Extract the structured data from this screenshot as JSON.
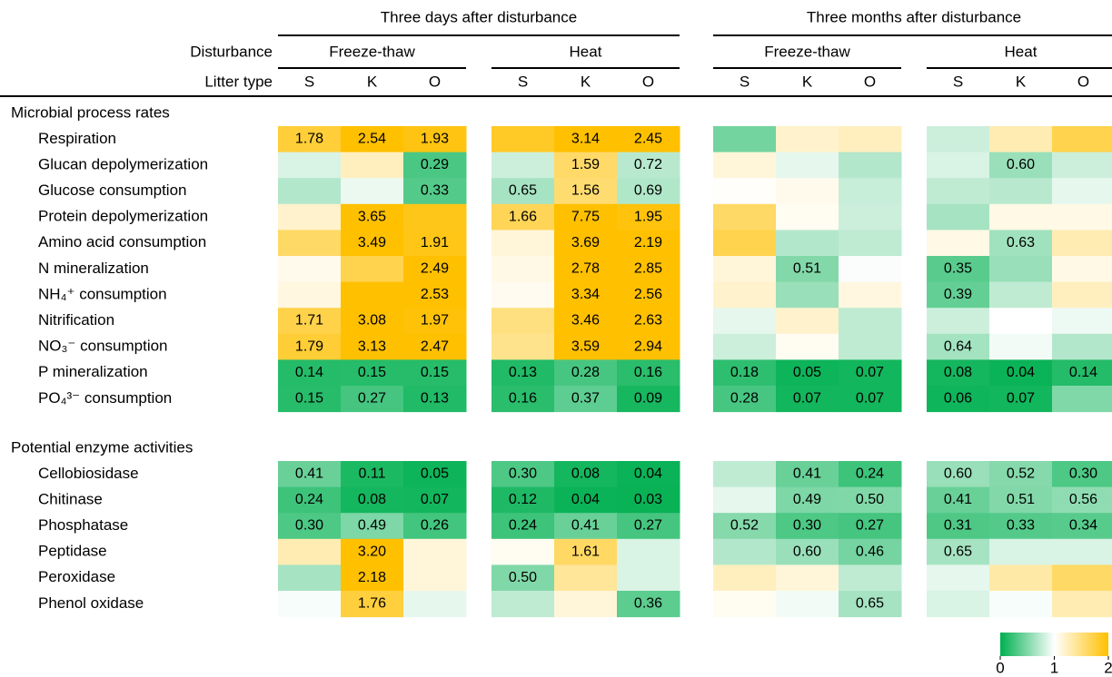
{
  "chart_data": {
    "type": "heatmap",
    "periods": [
      "Three days after disturbance",
      "Three months after disturbance"
    ],
    "disturbance_label": "Disturbance",
    "disturbances": [
      "Freeze-thaw",
      "Heat",
      "Freeze-thaw",
      "Heat"
    ],
    "litter_label": "Litter type",
    "litter_types": [
      "S",
      "K",
      "O",
      "S",
      "K",
      "O",
      "S",
      "K",
      "O",
      "S",
      "K",
      "O"
    ],
    "colorscale": [
      [
        0,
        "#00b050"
      ],
      [
        1,
        "#ffffff"
      ],
      [
        2,
        "#ffc000"
      ]
    ],
    "clim": [
      0,
      2
    ],
    "colorbar_ticks": [
      0,
      1,
      2
    ],
    "sections": [
      {
        "name": "Microbial process rates",
        "rows": [
          {
            "name": "Respiration",
            "values": [
              1.78,
              2.54,
              1.93,
              1.85,
              3.14,
              2.45,
              0.45,
              1.2,
              1.25,
              0.8,
              1.3,
              1.7
            ],
            "value_labels": [
              "1.78",
              "2.54",
              "1.93",
              null,
              "3.14",
              "2.45",
              null,
              null,
              null,
              null,
              null,
              null
            ]
          },
          {
            "name": "Glucan depolymerization",
            "values": [
              0.85,
              1.25,
              0.29,
              0.8,
              1.59,
              0.72,
              1.15,
              0.9,
              0.7,
              0.85,
              0.6,
              0.8
            ],
            "value_labels": [
              null,
              null,
              "0.29",
              null,
              "1.59",
              "0.72",
              null,
              null,
              null,
              null,
              "0.60",
              null
            ]
          },
          {
            "name": "Glucose consumption",
            "values": [
              0.7,
              0.92,
              0.33,
              0.65,
              1.56,
              0.69,
              1.02,
              1.08,
              0.78,
              0.75,
              0.72,
              0.9
            ],
            "value_labels": [
              null,
              null,
              "0.33",
              "0.65",
              "1.56",
              "0.69",
              null,
              null,
              null,
              null,
              null,
              null
            ]
          },
          {
            "name": "Protein depolymerization",
            "values": [
              1.2,
              3.65,
              1.9,
              1.66,
              7.75,
              1.95,
              1.6,
              1.05,
              0.8,
              0.65,
              1.1,
              1.1
            ],
            "value_labels": [
              null,
              "3.65",
              null,
              "1.66",
              "7.75",
              "1.95",
              null,
              null,
              null,
              null,
              null,
              null
            ]
          },
          {
            "name": "Amino acid consumption",
            "values": [
              1.6,
              3.49,
              1.91,
              1.15,
              3.69,
              2.19,
              1.7,
              0.7,
              0.75,
              1.1,
              0.63,
              1.3
            ],
            "value_labels": [
              null,
              "3.49",
              "1.91",
              null,
              "3.69",
              "2.19",
              null,
              null,
              null,
              null,
              "0.63",
              null
            ]
          },
          {
            "name": "N mineralization",
            "values": [
              1.08,
              1.7,
              2.49,
              1.1,
              2.78,
              2.85,
              1.15,
              0.51,
              0.98,
              0.35,
              0.6,
              1.1
            ],
            "value_labels": [
              null,
              null,
              "2.49",
              null,
              "2.78",
              "2.85",
              null,
              "0.51",
              null,
              "0.35",
              null,
              null
            ]
          },
          {
            "name": "NH₄⁺ consumption",
            "values": [
              1.12,
              2.0,
              2.53,
              1.06,
              3.34,
              2.56,
              1.2,
              0.6,
              1.12,
              0.39,
              0.75,
              1.25
            ],
            "value_labels": [
              null,
              null,
              "2.53",
              null,
              "3.34",
              "2.56",
              null,
              null,
              null,
              "0.39",
              null,
              null
            ]
          },
          {
            "name": "Nitrification",
            "values": [
              1.71,
              3.08,
              1.97,
              1.5,
              3.46,
              2.63,
              0.9,
              1.2,
              0.75,
              0.8,
              1.0,
              0.93
            ],
            "value_labels": [
              "1.71",
              "3.08",
              "1.97",
              null,
              "3.46",
              "2.63",
              null,
              null,
              null,
              null,
              null,
              null
            ]
          },
          {
            "name": "NO₃⁻ consumption",
            "values": [
              1.79,
              3.13,
              2.47,
              1.45,
              3.59,
              2.94,
              0.8,
              1.05,
              0.75,
              0.64,
              0.95,
              0.7
            ],
            "value_labels": [
              "1.79",
              "3.13",
              "2.47",
              null,
              "3.59",
              "2.94",
              null,
              null,
              null,
              "0.64",
              null,
              null
            ]
          },
          {
            "name": "P mineralization",
            "values": [
              0.14,
              0.15,
              0.15,
              0.13,
              0.28,
              0.16,
              0.18,
              0.05,
              0.07,
              0.08,
              0.04,
              0.14
            ],
            "value_labels": [
              "0.14",
              "0.15",
              "0.15",
              "0.13",
              "0.28",
              "0.16",
              "0.18",
              "0.05",
              "0.07",
              "0.08",
              "0.04",
              "0.14"
            ]
          },
          {
            "name": "PO₄³⁻ consumption",
            "values": [
              0.15,
              0.27,
              0.13,
              0.16,
              0.37,
              0.09,
              0.28,
              0.07,
              0.07,
              0.06,
              0.07,
              0.5
            ],
            "value_labels": [
              "0.15",
              "0.27",
              "0.13",
              "0.16",
              "0.37",
              "0.09",
              "0.28",
              "0.07",
              "0.07",
              "0.06",
              "0.07",
              null
            ]
          }
        ]
      },
      {
        "name": "Potential enzyme activities",
        "rows": [
          {
            "name": "Cellobiosidase",
            "values": [
              0.41,
              0.11,
              0.05,
              0.3,
              0.08,
              0.04,
              0.75,
              0.41,
              0.24,
              0.6,
              0.52,
              0.3
            ],
            "value_labels": [
              "0.41",
              "0.11",
              "0.05",
              "0.30",
              "0.08",
              "0.04",
              null,
              "0.41",
              "0.24",
              "0.60",
              "0.52",
              "0.30"
            ]
          },
          {
            "name": "Chitinase",
            "values": [
              0.24,
              0.08,
              0.07,
              0.12,
              0.04,
              0.03,
              0.9,
              0.49,
              0.5,
              0.41,
              0.51,
              0.56
            ],
            "value_labels": [
              "0.24",
              "0.08",
              "0.07",
              "0.12",
              "0.04",
              "0.03",
              null,
              "0.49",
              "0.50",
              "0.41",
              "0.51",
              "0.56"
            ]
          },
          {
            "name": "Phosphatase",
            "values": [
              0.3,
              0.49,
              0.26,
              0.24,
              0.41,
              0.27,
              0.52,
              0.3,
              0.27,
              0.31,
              0.33,
              0.34
            ],
            "value_labels": [
              "0.30",
              "0.49",
              "0.26",
              "0.24",
              "0.41",
              "0.27",
              "0.52",
              "0.30",
              "0.27",
              "0.31",
              "0.33",
              "0.34"
            ]
          },
          {
            "name": "Peptidase",
            "values": [
              1.3,
              3.2,
              1.15,
              1.05,
              1.61,
              0.85,
              0.7,
              0.6,
              0.46,
              0.65,
              0.85,
              0.85
            ],
            "value_labels": [
              null,
              "3.20",
              null,
              null,
              "1.61",
              null,
              null,
              "0.60",
              "0.46",
              "0.65",
              null,
              null
            ]
          },
          {
            "name": "Peroxidase",
            "values": [
              0.65,
              2.18,
              1.15,
              0.5,
              1.4,
              0.85,
              1.25,
              1.15,
              0.75,
              0.9,
              1.35,
              1.6
            ],
            "value_labels": [
              null,
              "2.18",
              null,
              "0.50",
              null,
              null,
              null,
              null,
              null,
              null,
              null,
              null
            ]
          },
          {
            "name": "Phenol oxidase",
            "values": [
              0.97,
              1.76,
              0.9,
              0.75,
              1.15,
              0.36,
              1.05,
              0.95,
              0.65,
              0.85,
              0.97,
              1.3
            ],
            "value_labels": [
              null,
              "1.76",
              null,
              null,
              null,
              "0.36",
              null,
              null,
              "0.65",
              null,
              null,
              null
            ]
          }
        ]
      }
    ]
  }
}
